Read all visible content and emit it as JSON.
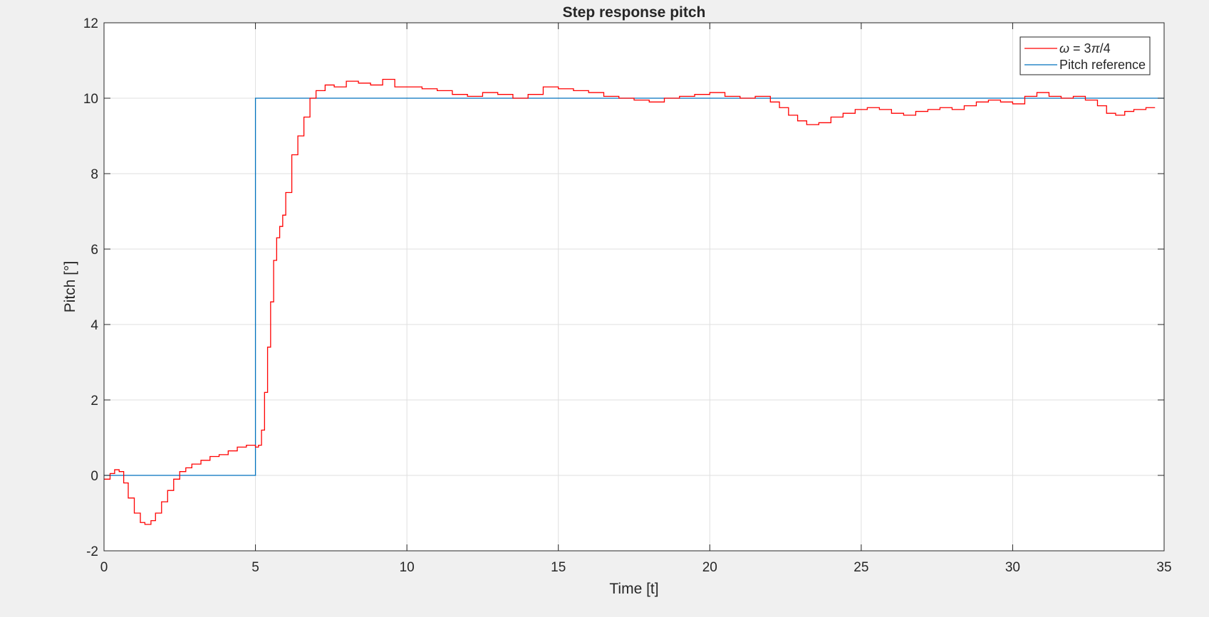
{
  "chart_data": {
    "type": "line",
    "title": "Step response pitch",
    "xlabel": "Time [t]",
    "ylabel": "Pitch [°]",
    "xlim": [
      0,
      35
    ],
    "ylim": [
      -2,
      12
    ],
    "xticks": [
      0,
      5,
      10,
      15,
      20,
      25,
      30,
      35
    ],
    "yticks": [
      -2,
      0,
      2,
      4,
      6,
      8,
      10,
      12
    ],
    "grid": true,
    "legend_location": "top-right",
    "series": [
      {
        "name": "ω = 3π/4",
        "legend_parts": [
          "ω",
          " = 3",
          "π",
          "/4"
        ],
        "color": "#ff0000",
        "step": true,
        "x": [
          0,
          0.2,
          0.35,
          0.5,
          0.65,
          0.8,
          1.0,
          1.2,
          1.35,
          1.45,
          1.55,
          1.7,
          1.9,
          2.1,
          2.3,
          2.5,
          2.7,
          2.9,
          3.2,
          3.5,
          3.8,
          4.1,
          4.4,
          4.7,
          4.9,
          5.0,
          5.1,
          5.2,
          5.3,
          5.4,
          5.5,
          5.6,
          5.7,
          5.8,
          5.9,
          6.0,
          6.2,
          6.4,
          6.6,
          6.8,
          7.0,
          7.3,
          7.6,
          8.0,
          8.4,
          8.8,
          9.2,
          9.6,
          10.0,
          10.5,
          11.0,
          11.5,
          12.0,
          12.5,
          13.0,
          13.5,
          14.0,
          14.5,
          15.0,
          15.5,
          16.0,
          16.5,
          17.0,
          17.5,
          18.0,
          18.5,
          19.0,
          19.5,
          20.0,
          20.5,
          21.0,
          21.5,
          22.0,
          22.3,
          22.6,
          22.9,
          23.2,
          23.6,
          24.0,
          24.4,
          24.8,
          25.2,
          25.6,
          26.0,
          26.4,
          26.8,
          27.2,
          27.6,
          28.0,
          28.4,
          28.8,
          29.2,
          29.6,
          30.0,
          30.4,
          30.8,
          31.2,
          31.6,
          32.0,
          32.4,
          32.8,
          33.1,
          33.4,
          33.7,
          34.0,
          34.4,
          34.7
        ],
        "y": [
          -0.1,
          0.05,
          0.15,
          0.1,
          -0.2,
          -0.6,
          -1.0,
          -1.25,
          -1.3,
          -1.3,
          -1.2,
          -1.0,
          -0.7,
          -0.4,
          -0.1,
          0.1,
          0.2,
          0.3,
          0.4,
          0.5,
          0.55,
          0.65,
          0.75,
          0.8,
          0.8,
          0.75,
          0.8,
          1.2,
          2.2,
          3.4,
          4.6,
          5.7,
          6.3,
          6.6,
          6.9,
          7.5,
          8.5,
          9.0,
          9.5,
          10.0,
          10.2,
          10.35,
          10.3,
          10.45,
          10.4,
          10.35,
          10.5,
          10.3,
          10.3,
          10.25,
          10.2,
          10.1,
          10.05,
          10.15,
          10.1,
          10.0,
          10.1,
          10.3,
          10.25,
          10.2,
          10.15,
          10.05,
          10.0,
          9.95,
          9.9,
          10.0,
          10.05,
          10.1,
          10.15,
          10.05,
          10.0,
          10.05,
          9.9,
          9.75,
          9.55,
          9.4,
          9.3,
          9.35,
          9.5,
          9.6,
          9.7,
          9.75,
          9.7,
          9.6,
          9.55,
          9.65,
          9.7,
          9.75,
          9.7,
          9.8,
          9.9,
          9.95,
          9.9,
          9.85,
          10.05,
          10.15,
          10.05,
          10.0,
          10.05,
          9.95,
          9.8,
          9.6,
          9.55,
          9.65,
          9.7,
          9.75,
          9.75
        ]
      },
      {
        "name": "Pitch reference",
        "color": "#0072bd",
        "step": true,
        "x": [
          0,
          5,
          5,
          35
        ],
        "y": [
          0,
          0,
          10,
          10
        ]
      }
    ]
  }
}
